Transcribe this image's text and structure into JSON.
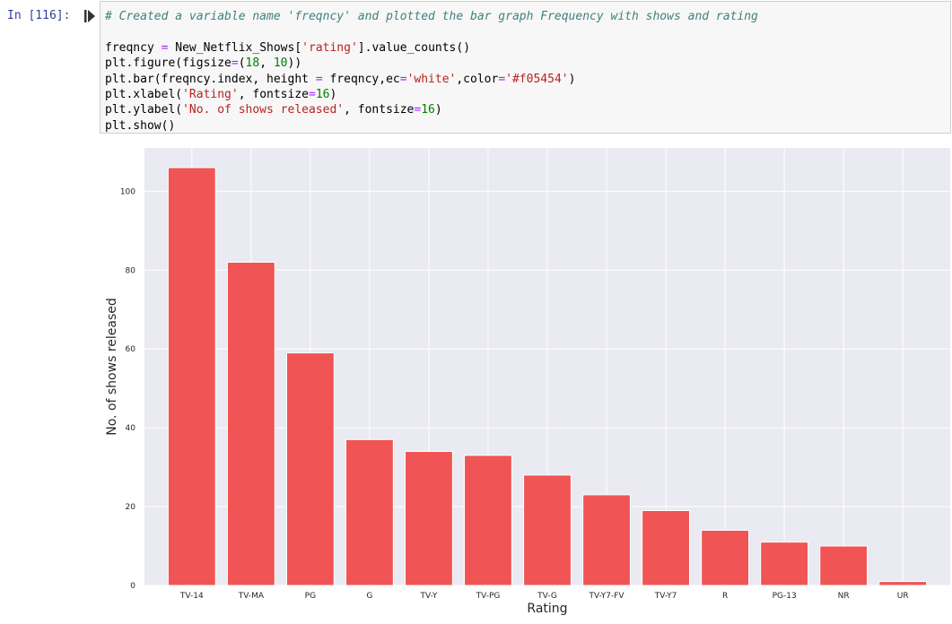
{
  "cell": {
    "prompt": "In [116]:",
    "code_lines": [
      [
        {
          "t": "# Created a variable name 'freqncy' and plotted the bar graph Frequency with shows and rating",
          "c": "cm"
        }
      ],
      [
        {
          "t": "",
          "c": ""
        }
      ],
      [
        {
          "t": "freqncy ",
          "c": ""
        },
        {
          "t": "=",
          "c": "op"
        },
        {
          "t": " New_Netflix_Shows[",
          "c": ""
        },
        {
          "t": "'rating'",
          "c": "st"
        },
        {
          "t": "].value_counts()",
          "c": ""
        }
      ],
      [
        {
          "t": "plt.figure(figsize",
          "c": ""
        },
        {
          "t": "=",
          "c": "op"
        },
        {
          "t": "(",
          "c": ""
        },
        {
          "t": "18",
          "c": "nu"
        },
        {
          "t": ", ",
          "c": ""
        },
        {
          "t": "10",
          "c": "nu"
        },
        {
          "t": "))",
          "c": ""
        }
      ],
      [
        {
          "t": "plt.bar(freqncy.index, height ",
          "c": ""
        },
        {
          "t": "=",
          "c": "op"
        },
        {
          "t": " freqncy,ec",
          "c": ""
        },
        {
          "t": "=",
          "c": "op"
        },
        {
          "t": "'white'",
          "c": "st"
        },
        {
          "t": ",color",
          "c": ""
        },
        {
          "t": "=",
          "c": "op"
        },
        {
          "t": "'#f05454'",
          "c": "st"
        },
        {
          "t": ")",
          "c": ""
        }
      ],
      [
        {
          "t": "plt.xlabel(",
          "c": ""
        },
        {
          "t": "'Rating'",
          "c": "st"
        },
        {
          "t": ", fontsize",
          "c": ""
        },
        {
          "t": "=",
          "c": "op"
        },
        {
          "t": "16",
          "c": "nu"
        },
        {
          "t": ")",
          "c": ""
        }
      ],
      [
        {
          "t": "plt.ylabel(",
          "c": ""
        },
        {
          "t": "'No. of shows released'",
          "c": "st"
        },
        {
          "t": ", fontsize",
          "c": ""
        },
        {
          "t": "=",
          "c": "op"
        },
        {
          "t": "16",
          "c": "nu"
        },
        {
          "t": ")",
          "c": ""
        }
      ],
      [
        {
          "t": "plt.show()",
          "c": ""
        }
      ]
    ]
  },
  "colors": {
    "bar": "#f05454",
    "plot_bg": "#eaeaf2",
    "grid": "#ffffff"
  },
  "chart_data": {
    "type": "bar",
    "categories": [
      "TV-14",
      "TV-MA",
      "PG",
      "G",
      "TV-Y",
      "TV-PG",
      "TV-G",
      "TV-Y7-FV",
      "TV-Y7",
      "R",
      "PG-13",
      "NR",
      "UR"
    ],
    "values": [
      106,
      82,
      59,
      37,
      34,
      33,
      28,
      23,
      19,
      14,
      11,
      10,
      1
    ],
    "xlabel": "Rating",
    "ylabel": "No. of shows released",
    "ylim": [
      0,
      111
    ],
    "yticks": [
      0,
      20,
      40,
      60,
      80,
      100
    ],
    "grid": true
  }
}
